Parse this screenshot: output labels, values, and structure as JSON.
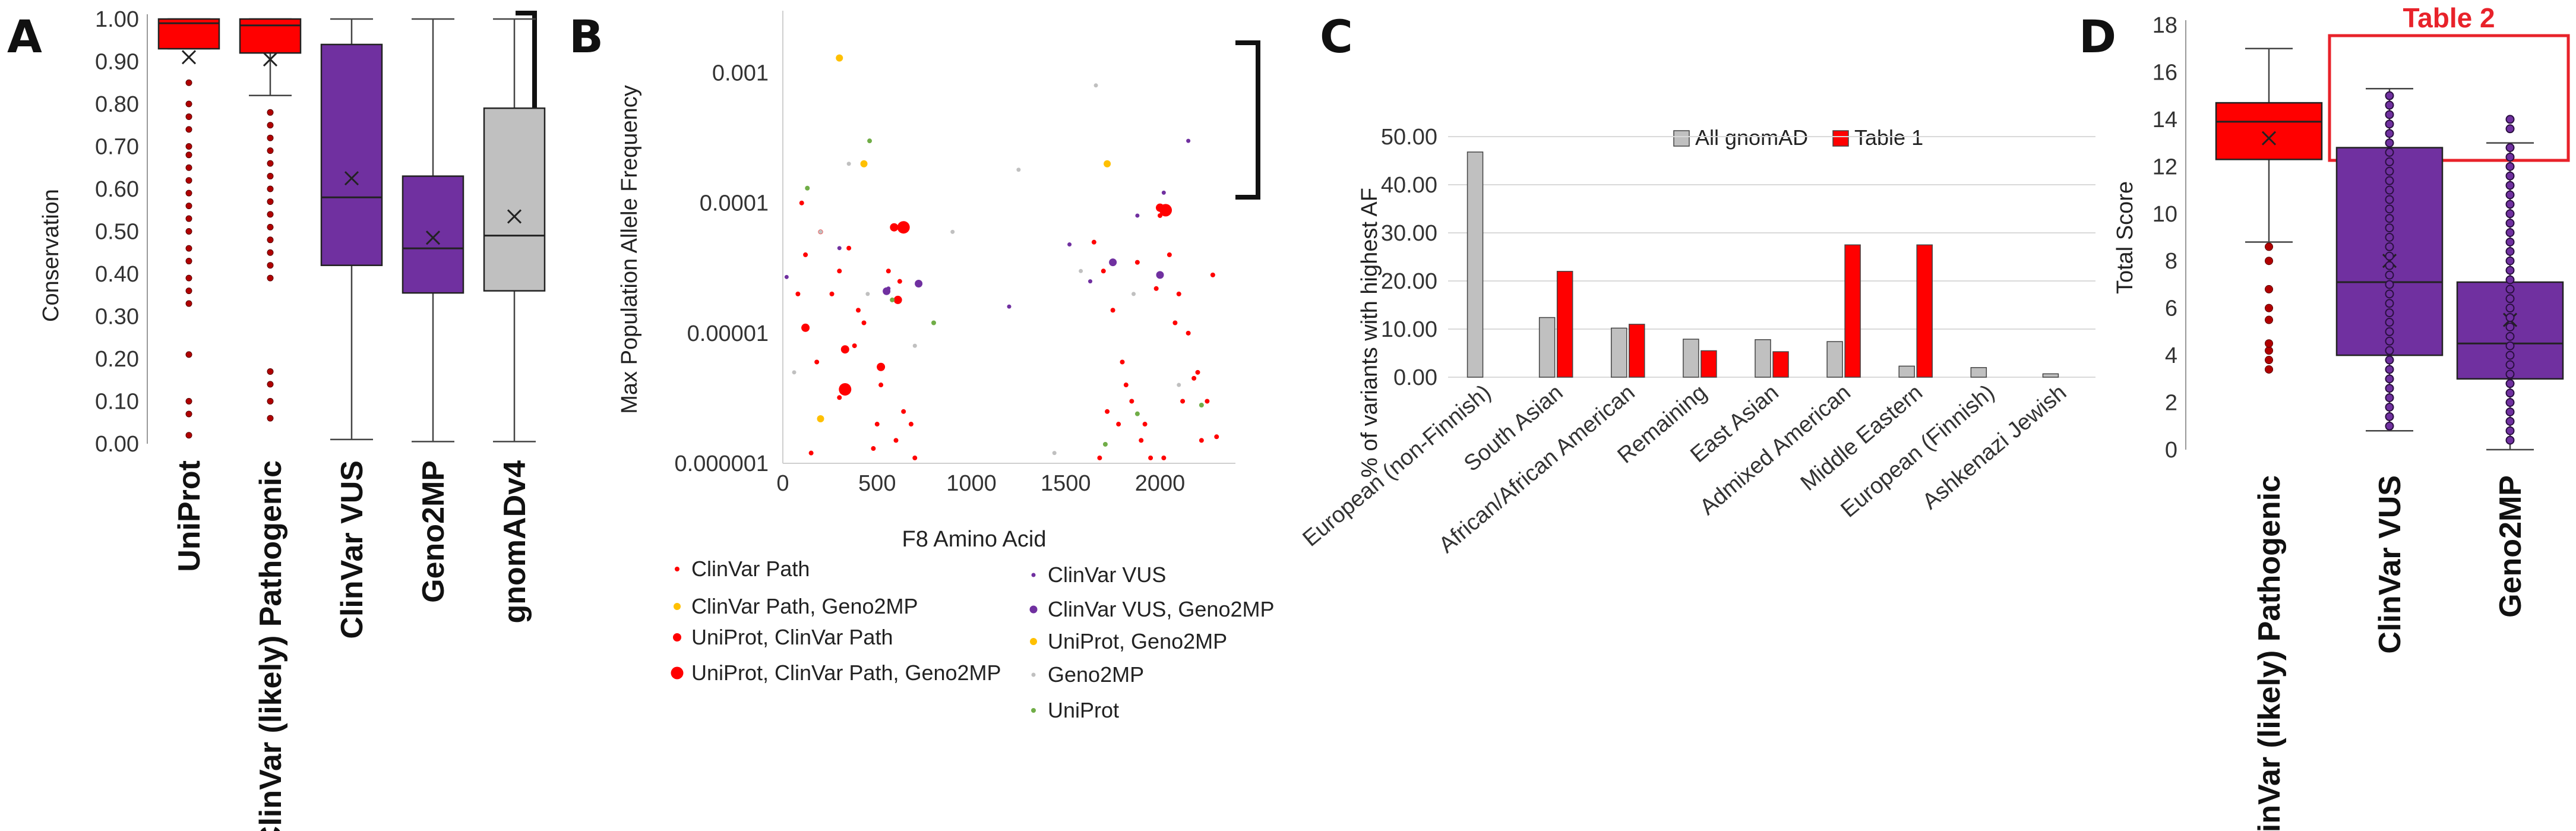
{
  "colors": {
    "red": "#ff0000",
    "dark_red": "#b00000",
    "purple": "#7030a0",
    "gray": "#c0c0c0",
    "orange": "#ffc000",
    "green": "#70ad47",
    "light_gray": "#d0d0d0",
    "annot_red": "#e8222a"
  },
  "panel_labels": [
    "A",
    "B",
    "C",
    "D"
  ],
  "chart_data": [
    {
      "panel": "A",
      "type": "box",
      "ylabel": "Conservation",
      "xlabel": "",
      "yticks": [
        "0.00",
        "0.10",
        "0.20",
        "0.30",
        "0.40",
        "0.50",
        "0.60",
        "0.70",
        "0.80",
        "0.90",
        "1.00"
      ],
      "ylim": [
        0,
        1
      ],
      "grid": false,
      "groups": [
        {
          "name": "UniProt",
          "color": "#ff0000",
          "min": 0.93,
          "q1": 0.93,
          "median": 0.99,
          "q3": 1.0,
          "max": 1.0,
          "mean": 0.91,
          "outliers": [
            0.85,
            0.8,
            0.77,
            0.74,
            0.7,
            0.68,
            0.65,
            0.62,
            0.59,
            0.56,
            0.53,
            0.5,
            0.46,
            0.43,
            0.39,
            0.36,
            0.33,
            0.21,
            0.1,
            0.07,
            0.02
          ]
        },
        {
          "name": "ClinVar (likely) Pathogenic",
          "color": "#ff0000",
          "min": 0.82,
          "q1": 0.92,
          "median": 0.985,
          "q3": 1.0,
          "max": 1.0,
          "mean": 0.905,
          "outliers": [
            0.78,
            0.75,
            0.72,
            0.69,
            0.66,
            0.63,
            0.6,
            0.57,
            0.54,
            0.51,
            0.48,
            0.45,
            0.42,
            0.39,
            0.17,
            0.14,
            0.1,
            0.06
          ]
        },
        {
          "name": "ClinVar VUS",
          "color": "#7030a0",
          "min": 0.01,
          "q1": 0.42,
          "median": 0.58,
          "q3": 0.94,
          "max": 1.0,
          "mean": 0.625,
          "outliers": []
        },
        {
          "name": "Geno2MP",
          "color": "#7030a0",
          "min": 0.005,
          "q1": 0.355,
          "median": 0.46,
          "q3": 0.63,
          "max": 1.0,
          "mean": 0.485,
          "outliers": []
        },
        {
          "name": "gnomADv4",
          "color": "#c0c0c0",
          "min": 0.005,
          "q1": 0.36,
          "median": 0.49,
          "q3": 0.79,
          "max": 1.0,
          "mean": 0.535,
          "outliers": []
        }
      ]
    },
    {
      "panel": "B",
      "type": "scatter",
      "xlabel": "F8 Amino Acid",
      "ylabel": "Max Population Allele Frequency",
      "xlim": [
        0,
        2400
      ],
      "xticks": [
        "0",
        "500",
        "1000",
        "1500",
        "2000"
      ],
      "ylim": [
        1e-06,
        0.003
      ],
      "yscale": "log",
      "yticks": [
        "0.000001",
        "0.00001",
        "0.0001",
        "0.001"
      ],
      "series": [
        {
          "name": "ClinVar Path",
          "color": "#ff0000",
          "x": [
            100,
            200,
            300,
            400,
            500,
            600,
            700,
            120,
            260,
            380,
            520,
            640,
            80,
            180,
            300,
            430,
            560,
            680,
            150,
            350,
            480,
            620,
            1650,
            1700,
            1750,
            1800,
            1850,
            1900,
            1950,
            2000,
            2050,
            2100,
            2150,
            2200,
            2250,
            2300,
            1680,
            1780,
            1880,
            1980,
            2080,
            2180,
            2280,
            1720,
            1820,
            1920,
            2020,
            2120,
            2220
          ],
          "y": [
            0.0001,
            6e-05,
            3e-05,
            1.5e-05,
            2e-06,
            1.5e-06,
            1.1e-06,
            4e-05,
            2e-05,
            8e-06,
            4e-06,
            2.5e-06,
            2e-05,
            6e-06,
            3.2e-06,
            1.2e-05,
            3e-05,
            2e-06,
            1.2e-06,
            4.5e-05,
            1.3e-06,
            2.5e-05,
            5e-05,
            3e-05,
            1.5e-05,
            6e-06,
            3e-06,
            1.5e-06,
            1.1e-06,
            8e-05,
            4e-05,
            2e-05,
            1e-05,
            5e-06,
            3e-06,
            1.6e-06,
            1.1e-06,
            2e-06,
            3.5e-05,
            2.2e-05,
            1.2e-05,
            4.5e-06,
            2.8e-05,
            2.5e-06,
            4e-06,
            2e-06,
            1.1e-06,
            3e-06,
            1.5e-06
          ]
        },
        {
          "name": "ClinVar VUS",
          "color": "#7030a0",
          "x": [
            20,
            300,
            560,
            1200,
            1520,
            1630,
            1880,
            2020,
            2150
          ],
          "y": [
            2.7e-05,
            4.5e-05,
            2.2e-05,
            1.6e-05,
            4.8e-05,
            2.5e-05,
            8e-05,
            0.00012,
            0.0003
          ]
        },
        {
          "name": "ClinVar Path, Geno2MP",
          "color": "#ffc000",
          "x": [
            200
          ],
          "y": [
            2.2e-06
          ]
        },
        {
          "name": "ClinVar VUS, Geno2MP",
          "color": "#7030a0",
          "x": [
            550,
            720,
            1750,
            2000
          ],
          "y": [
            2.1e-05,
            2.4e-05,
            3.5e-05,
            2.8e-05
          ]
        },
        {
          "name": "UniProt, ClinVar Path",
          "color": "#ff0000",
          "x": [
            120,
            330,
            520,
            590,
            610,
            2000
          ],
          "y": [
            1.1e-05,
            7.5e-06,
            5.5e-06,
            6.5e-05,
            1.8e-05,
            9.2e-05
          ]
        },
        {
          "name": "UniProt, Geno2MP",
          "color": "#ffc000",
          "x": [
            300,
            430,
            1720
          ],
          "y": [
            0.0013,
            0.0002,
            0.0002
          ]
        },
        {
          "name": "UniProt, ClinVar Path, Geno2MP",
          "color": "#ff0000",
          "x": [
            330,
            640,
            2030
          ],
          "y": [
            3.7e-06,
            6.5e-05,
            8.8e-05
          ]
        },
        {
          "name": "Geno2MP",
          "color": "#c0c0c0",
          "x": [
            60,
            200,
            350,
            450,
            700,
            900,
            1250,
            1440,
            1580,
            1660,
            1860,
            2100
          ],
          "y": [
            5e-06,
            6e-05,
            0.0002,
            2e-05,
            8e-06,
            6e-05,
            0.00018,
            1.2e-06,
            3e-05,
            0.0008,
            2e-05,
            4e-06
          ]
        },
        {
          "name": "UniProt",
          "color": "#70ad47",
          "x": [
            130,
            460,
            580,
            800,
            1710,
            1880,
            2220
          ],
          "y": [
            0.00013,
            0.0003,
            1.8e-05,
            1.2e-05,
            1.4e-06,
            2.4e-06,
            2.8e-06
          ]
        }
      ],
      "legend": [
        "ClinVar Path",
        "ClinVar VUS",
        "ClinVar Path, Geno2MP",
        "ClinVar VUS, Geno2MP",
        "UniProt, ClinVar Path",
        "UniProt, Geno2MP",
        "UniProt, ClinVar Path, Geno2MP",
        "Geno2MP",
        "UniProt"
      ]
    },
    {
      "panel": "C",
      "type": "bar",
      "ylabel": "% of variants with highest AF",
      "xlabel": "",
      "ylim": [
        0,
        50
      ],
      "yticks": [
        "0.00",
        "10.00",
        "20.00",
        "30.00",
        "40.00",
        "50.00"
      ],
      "grid": true,
      "legend_placement": "top-center",
      "categories": [
        "European (non-Finnish)",
        "South Asian",
        "African/African American",
        "Remaining",
        "East Asian",
        "Admixed American",
        "Middle Eastern",
        "European (Finnish)",
        "Ashkenazi Jewish"
      ],
      "series": [
        {
          "name": "All gnomAD",
          "color": "#c0c0c0",
          "values": [
            46.8,
            12.4,
            10.2,
            7.9,
            7.8,
            7.4,
            2.3,
            2.0,
            0.7
          ]
        },
        {
          "name": "Table 1",
          "color": "#ff0000",
          "values": [
            0,
            22.0,
            11.0,
            5.5,
            5.3,
            27.5,
            27.5,
            0,
            0
          ]
        }
      ]
    },
    {
      "panel": "D",
      "type": "box",
      "ylabel": "Total Score",
      "xlabel": "",
      "ylim": [
        0,
        18
      ],
      "yticks": [
        "0",
        "2",
        "4",
        "6",
        "8",
        "10",
        "12",
        "14",
        "16",
        "18"
      ],
      "annotation": "Table 2",
      "groups": [
        {
          "name": "ClinVar (likely) Pathogenic",
          "color": "#ff0000",
          "min": 8.8,
          "q1": 12.3,
          "median": 13.9,
          "q3": 14.7,
          "max": 17.0,
          "mean": 13.2,
          "outliers": [
            3.4,
            3.8,
            4.2,
            4.5,
            5.5,
            6.0,
            6.8,
            8.0,
            8.6
          ]
        },
        {
          "name": "ClinVar VUS",
          "color": "#7030a0",
          "min": 0.8,
          "q1": 4.0,
          "median": 7.1,
          "q3": 12.8,
          "max": 15.3,
          "mean": 8.0,
          "points": [
            1.0,
            1.4,
            1.8,
            2.2,
            2.6,
            3.0,
            3.4,
            3.8,
            4.2,
            4.6,
            5.0,
            5.4,
            5.8,
            6.2,
            6.6,
            7.0,
            7.4,
            7.8,
            8.2,
            8.6,
            9.0,
            9.4,
            9.8,
            10.2,
            10.6,
            11.0,
            11.4,
            11.8,
            12.2,
            12.6,
            13.0,
            13.4,
            13.8,
            14.2,
            14.6,
            15.0
          ]
        },
        {
          "name": "Geno2MP",
          "color": "#7030a0",
          "min": 0.0,
          "q1": 3.0,
          "median": 4.5,
          "q3": 7.1,
          "max": 13.0,
          "mean": 5.5,
          "points": [
            0.4,
            0.8,
            1.2,
            1.6,
            2.0,
            2.4,
            2.8,
            3.2,
            3.6,
            4.0,
            4.4,
            4.8,
            5.2,
            5.6,
            6.0,
            6.4,
            6.8,
            7.2,
            7.6,
            8.0,
            8.4,
            8.8,
            9.2,
            9.6,
            10.0,
            10.4,
            10.8,
            11.2,
            11.6,
            12.0,
            12.4,
            12.8,
            13.6,
            14.0
          ]
        }
      ]
    }
  ]
}
